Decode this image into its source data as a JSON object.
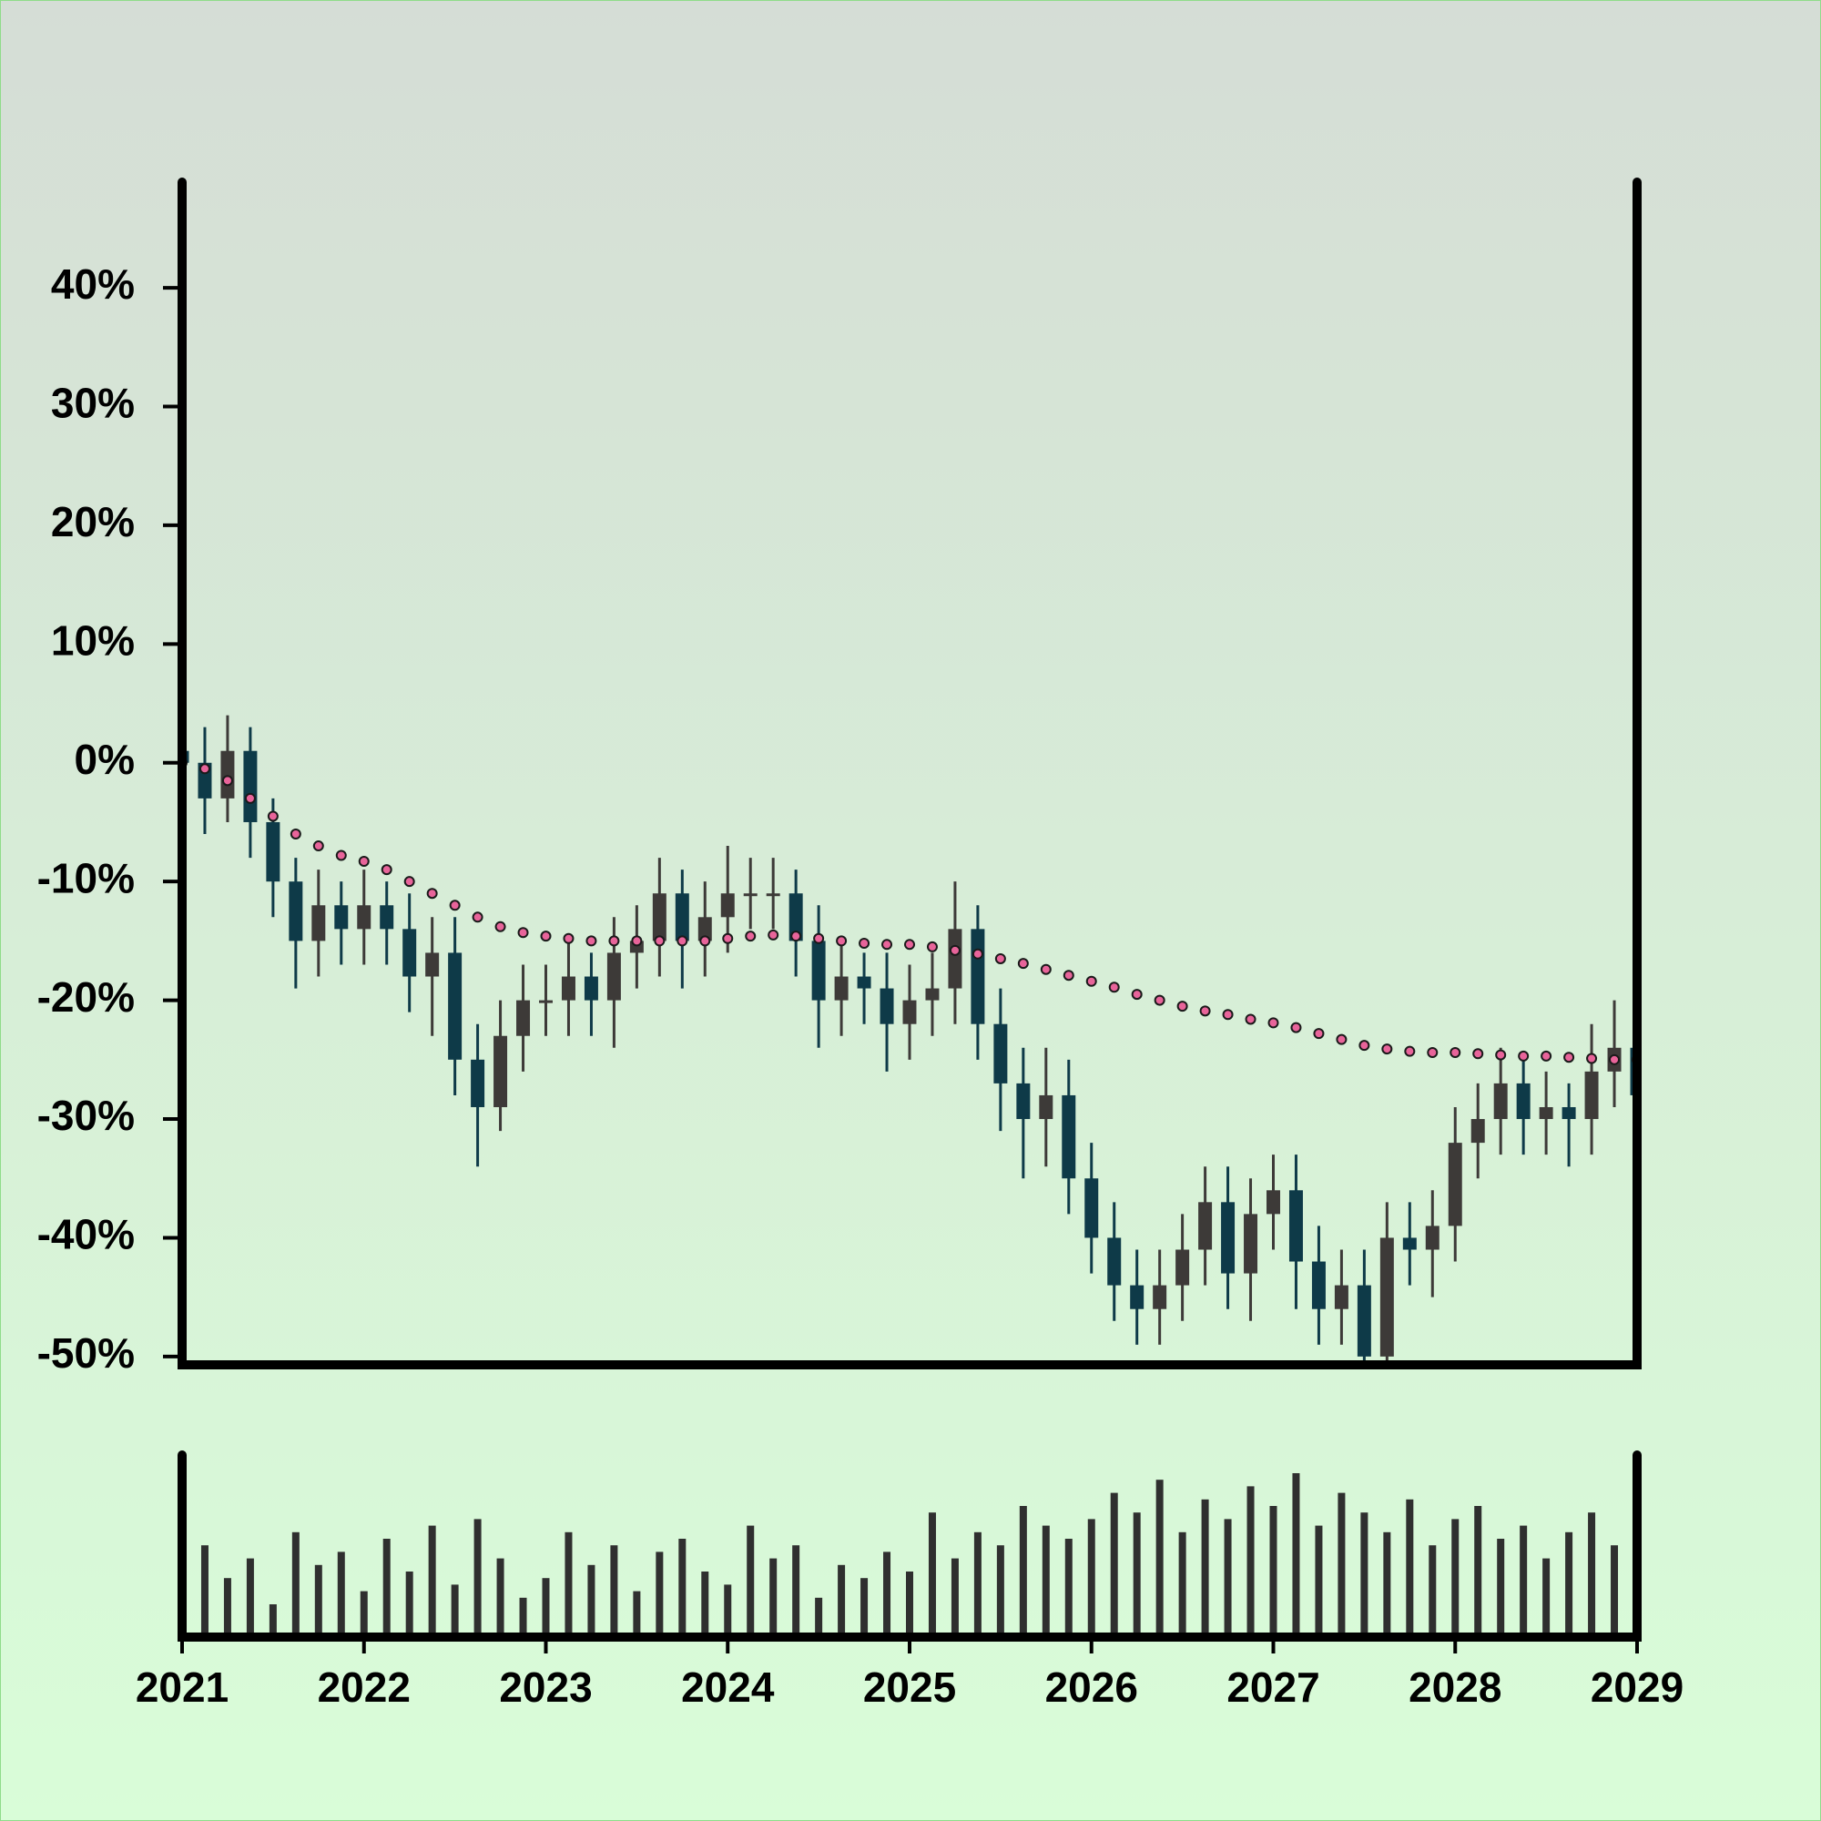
{
  "chart_data": {
    "type": "candlestick",
    "x": [
      2021,
      2021.125,
      2021.25,
      2021.375,
      2021.5,
      2021.625,
      2021.75,
      2021.875,
      2022,
      2022.125,
      2022.25,
      2022.375,
      2022.5,
      2022.625,
      2022.75,
      2022.875,
      2023,
      2023.125,
      2023.25,
      2023.375,
      2023.5,
      2023.625,
      2023.75,
      2023.875,
      2024,
      2024.125,
      2024.25,
      2024.375,
      2024.5,
      2024.625,
      2024.75,
      2024.875,
      2025,
      2025.125,
      2025.25,
      2025.375,
      2025.5,
      2025.625,
      2025.75,
      2025.875,
      2026,
      2026.125,
      2026.25,
      2026.375,
      2026.5,
      2026.625,
      2026.75,
      2026.875,
      2027,
      2027.125,
      2027.25,
      2027.375,
      2027.5,
      2027.625,
      2027.75,
      2027.875,
      2028,
      2028.125,
      2028.25,
      2028.375,
      2028.5,
      2028.625,
      2028.75,
      2028.875,
      2029
    ],
    "open": [
      1,
      0,
      -3,
      1,
      -5,
      -10,
      -15,
      -12,
      -14,
      -12,
      -14,
      -18,
      -16,
      -25,
      -29,
      -23,
      -20,
      -20,
      -18,
      -20,
      -16,
      -15,
      -11,
      -15,
      -13,
      -11,
      -11,
      -11,
      -15,
      -20,
      -18,
      -19,
      -22,
      -20,
      -19,
      -14,
      -22,
      -27,
      -30,
      -28,
      -35,
      -40,
      -44,
      -46,
      -44,
      -41,
      -37,
      -43,
      -38,
      -36,
      -42,
      -46,
      -44,
      -50,
      -40,
      -41,
      -39,
      -32,
      -30,
      -27,
      -30,
      -29,
      -30,
      -26,
      -24
    ],
    "high": [
      3,
      3,
      4,
      3,
      -3,
      -8,
      -9,
      -10,
      -9,
      -10,
      -11,
      -13,
      -13,
      -22,
      -20,
      -17,
      -17,
      -15,
      -16,
      -13,
      -12,
      -8,
      -9,
      -10,
      -7,
      -8,
      -8,
      -9,
      -12,
      -15,
      -16,
      -16,
      -17,
      -16,
      -10,
      -12,
      -19,
      -24,
      -24,
      -25,
      -32,
      -37,
      -41,
      -41,
      -38,
      -34,
      -34,
      -35,
      -33,
      -33,
      -39,
      -41,
      -41,
      -37,
      -37,
      -36,
      -29,
      -27,
      -24,
      -25,
      -26,
      -27,
      -22,
      -20,
      -22
    ],
    "low": [
      -3,
      -6,
      -5,
      -8,
      -13,
      -19,
      -18,
      -17,
      -17,
      -17,
      -21,
      -23,
      -28,
      -34,
      -31,
      -26,
      -23,
      -23,
      -23,
      -24,
      -19,
      -18,
      -19,
      -18,
      -16,
      -14,
      -14,
      -18,
      -24,
      -23,
      -22,
      -26,
      -25,
      -23,
      -22,
      -25,
      -31,
      -35,
      -34,
      -38,
      -43,
      -47,
      -49,
      -49,
      -47,
      -44,
      -46,
      -47,
      -41,
      -46,
      -49,
      -49,
      -53,
      -52,
      -44,
      -45,
      -42,
      -35,
      -33,
      -33,
      -33,
      -34,
      -33,
      -29,
      -31
    ],
    "close": [
      0,
      -3,
      1,
      -5,
      -10,
      -15,
      -12,
      -14,
      -12,
      -14,
      -18,
      -16,
      -25,
      -29,
      -23,
      -20,
      -20,
      -18,
      -20,
      -16,
      -15,
      -11,
      -15,
      -13,
      -11,
      -11,
      -11,
      -15,
      -20,
      -18,
      -19,
      -22,
      -20,
      -19,
      -14,
      -22,
      -27,
      -30,
      -28,
      -35,
      -40,
      -44,
      -46,
      -44,
      -41,
      -37,
      -43,
      -38,
      -36,
      -42,
      -46,
      -44,
      -50,
      -40,
      -41,
      -39,
      -32,
      -30,
      -27,
      -30,
      -29,
      -30,
      -26,
      -24,
      -28
    ],
    "volume": [
      30,
      70,
      45,
      60,
      25,
      80,
      55,
      65,
      35,
      75,
      50,
      85,
      40,
      90,
      60,
      30,
      45,
      80,
      55,
      70,
      35,
      65,
      75,
      50,
      40,
      85,
      60,
      70,
      30,
      55,
      45,
      65,
      50,
      95,
      60,
      80,
      70,
      100,
      85,
      75,
      90,
      110,
      95,
      120,
      80,
      105,
      90,
      115,
      100,
      125,
      85,
      110,
      95,
      80,
      105,
      70,
      90,
      100,
      75,
      85,
      60,
      80,
      95,
      70,
      85
    ],
    "moving_average": [
      0,
      -0.5,
      -1.5,
      -3,
      -4.5,
      -6,
      -7,
      -7.8,
      -8.3,
      -9,
      -10,
      -11,
      -12,
      -13,
      -13.8,
      -14.3,
      -14.6,
      -14.8,
      -15,
      -15,
      -15,
      -15,
      -15,
      -15,
      -14.8,
      -14.6,
      -14.5,
      -14.6,
      -14.8,
      -15,
      -15.2,
      -15.3,
      -15.3,
      -15.5,
      -15.8,
      -16.1,
      -16.5,
      -16.9,
      -17.4,
      -17.9,
      -18.4,
      -18.9,
      -19.5,
      -20,
      -20.5,
      -20.9,
      -21.2,
      -21.6,
      -21.9,
      -22.3,
      -22.8,
      -23.3,
      -23.8,
      -24.1,
      -24.3,
      -24.4,
      -24.4,
      -24.5,
      -24.6,
      -24.7,
      -24.7,
      -24.8,
      -24.9,
      -25,
      -25
    ],
    "up_color": "#3d3a38",
    "down_color": "#0e3a48",
    "volume_color": "#2f2f2f",
    "moving_average_color": "#e8649a",
    "xlim": [
      2021,
      2029
    ],
    "xticks": [
      2021,
      2022,
      2023,
      2024,
      2025,
      2026,
      2027,
      2028,
      2029
    ],
    "ylim": [
      -50.7,
      48.9
    ],
    "yticks": [
      {
        "value": 40,
        "label": "40%"
      },
      {
        "value": 30,
        "label": "30%"
      },
      {
        "value": 20,
        "label": "20%"
      },
      {
        "value": 10,
        "label": "10%"
      },
      {
        "value": 0,
        "label": "0%"
      },
      {
        "value": -10,
        "label": "-10%"
      },
      {
        "value": -20,
        "label": "-20%"
      },
      {
        "value": -30,
        "label": "-30%"
      },
      {
        "value": -40,
        "label": "-40%"
      },
      {
        "value": -50,
        "label": "-50%"
      }
    ]
  }
}
